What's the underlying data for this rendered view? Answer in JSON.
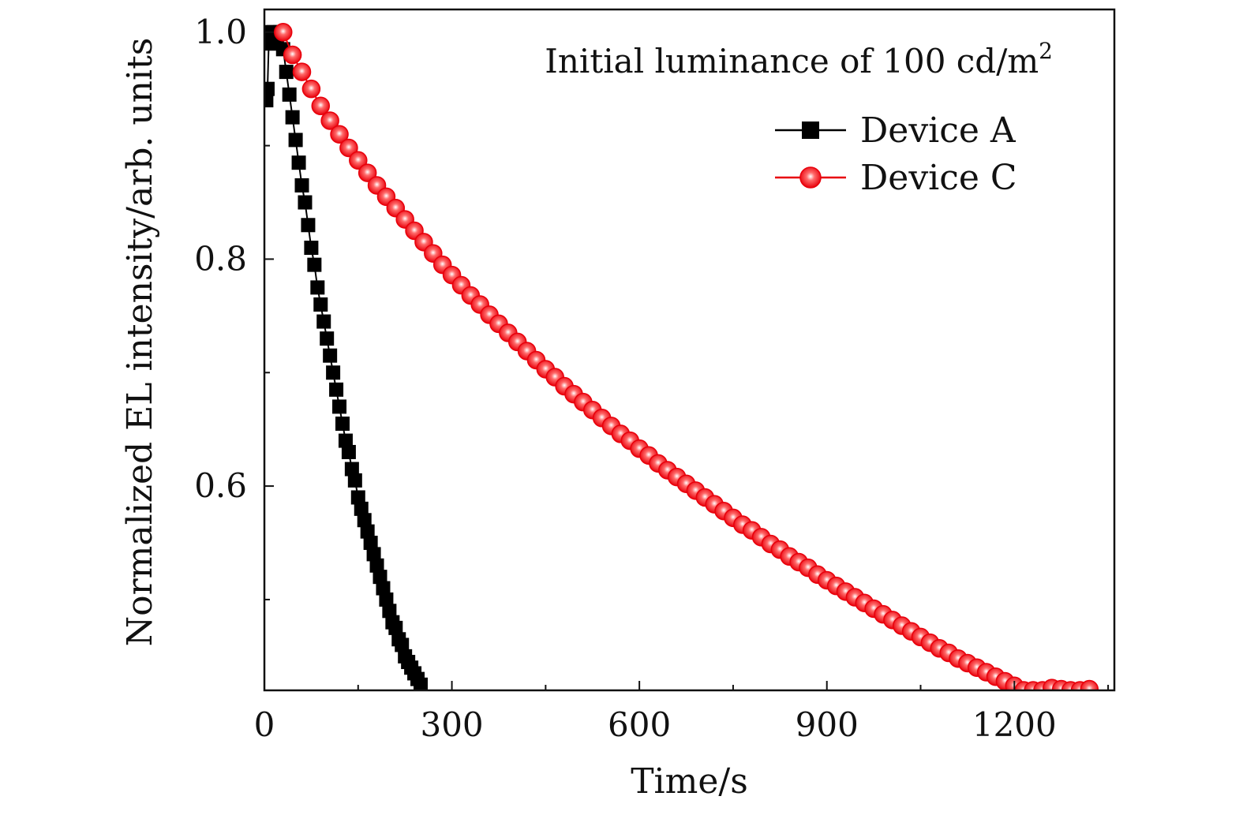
{
  "chart_data": {
    "type": "scatter",
    "title": "",
    "xlabel": "Time/s",
    "ylabel": "Normalized EL intensity/arb. units",
    "xlim": [
      0,
      1360
    ],
    "ylim": [
      0.42,
      1.02
    ],
    "xticks": [
      0,
      300,
      600,
      900,
      1200
    ],
    "xtick_labels": [
      "0",
      "300",
      "600",
      "900",
      "1200"
    ],
    "yticks": [
      0.6,
      0.8,
      1.0
    ],
    "ytick_labels": [
      "0.6",
      "0.8",
      "1.0"
    ],
    "annotation": {
      "text": "Initial luminance of 100 cd/m",
      "superscript": "2"
    },
    "legend_position": "top-right",
    "grid": false,
    "series": [
      {
        "name": "Device A",
        "marker": "square",
        "color": "#000000",
        "x": [
          3,
          5,
          7,
          10,
          12,
          15,
          18,
          20,
          25,
          30,
          35,
          40,
          45,
          50,
          55,
          60,
          65,
          70,
          75,
          80,
          85,
          90,
          95,
          100,
          105,
          110,
          115,
          120,
          125,
          130,
          135,
          140,
          145,
          150,
          155,
          160,
          165,
          170,
          175,
          180,
          185,
          190,
          195,
          200,
          205,
          210,
          215,
          220,
          225,
          230,
          235,
          240,
          245,
          250
        ],
        "y": [
          0.94,
          0.95,
          0.99,
          0.995,
          1.0,
          1.0,
          0.99,
          0.995,
          1.0,
          0.985,
          0.965,
          0.945,
          0.925,
          0.905,
          0.885,
          0.865,
          0.85,
          0.83,
          0.81,
          0.795,
          0.775,
          0.76,
          0.745,
          0.73,
          0.715,
          0.7,
          0.685,
          0.67,
          0.655,
          0.64,
          0.63,
          0.615,
          0.605,
          0.59,
          0.58,
          0.57,
          0.56,
          0.55,
          0.54,
          0.53,
          0.52,
          0.51,
          0.5,
          0.49,
          0.48,
          0.475,
          0.465,
          0.46,
          0.45,
          0.445,
          0.44,
          0.435,
          0.43,
          0.425
        ]
      },
      {
        "name": "Device C",
        "marker": "circle",
        "color": "#e8000b",
        "x": [
          30,
          45,
          60,
          75,
          90,
          105,
          120,
          135,
          150,
          165,
          180,
          195,
          210,
          225,
          240,
          255,
          270,
          285,
          300,
          315,
          330,
          345,
          360,
          375,
          390,
          405,
          420,
          435,
          450,
          465,
          480,
          495,
          510,
          525,
          540,
          555,
          570,
          585,
          600,
          615,
          630,
          645,
          660,
          675,
          690,
          705,
          720,
          735,
          750,
          765,
          780,
          795,
          810,
          825,
          840,
          855,
          870,
          885,
          900,
          915,
          930,
          945,
          960,
          975,
          990,
          1005,
          1020,
          1035,
          1050,
          1065,
          1080,
          1095,
          1110,
          1125,
          1140,
          1155,
          1170,
          1185,
          1200,
          1215,
          1230,
          1245,
          1260,
          1275,
          1290,
          1305,
          1320
        ],
        "y": [
          1.0,
          0.98,
          0.965,
          0.95,
          0.935,
          0.922,
          0.91,
          0.898,
          0.887,
          0.876,
          0.865,
          0.855,
          0.845,
          0.835,
          0.825,
          0.815,
          0.805,
          0.795,
          0.786,
          0.777,
          0.768,
          0.76,
          0.751,
          0.743,
          0.735,
          0.727,
          0.719,
          0.711,
          0.703,
          0.696,
          0.688,
          0.681,
          0.674,
          0.667,
          0.66,
          0.653,
          0.646,
          0.64,
          0.633,
          0.627,
          0.62,
          0.614,
          0.608,
          0.602,
          0.596,
          0.59,
          0.584,
          0.578,
          0.572,
          0.566,
          0.561,
          0.555,
          0.549,
          0.544,
          0.538,
          0.533,
          0.528,
          0.522,
          0.517,
          0.512,
          0.507,
          0.502,
          0.497,
          0.492,
          0.487,
          0.482,
          0.477,
          0.472,
          0.467,
          0.462,
          0.457,
          0.453,
          0.448,
          0.444,
          0.44,
          0.436,
          0.432,
          0.428,
          0.424,
          0.42,
          0.42,
          0.42,
          0.422,
          0.421,
          0.42,
          0.42,
          0.421
        ]
      }
    ]
  }
}
